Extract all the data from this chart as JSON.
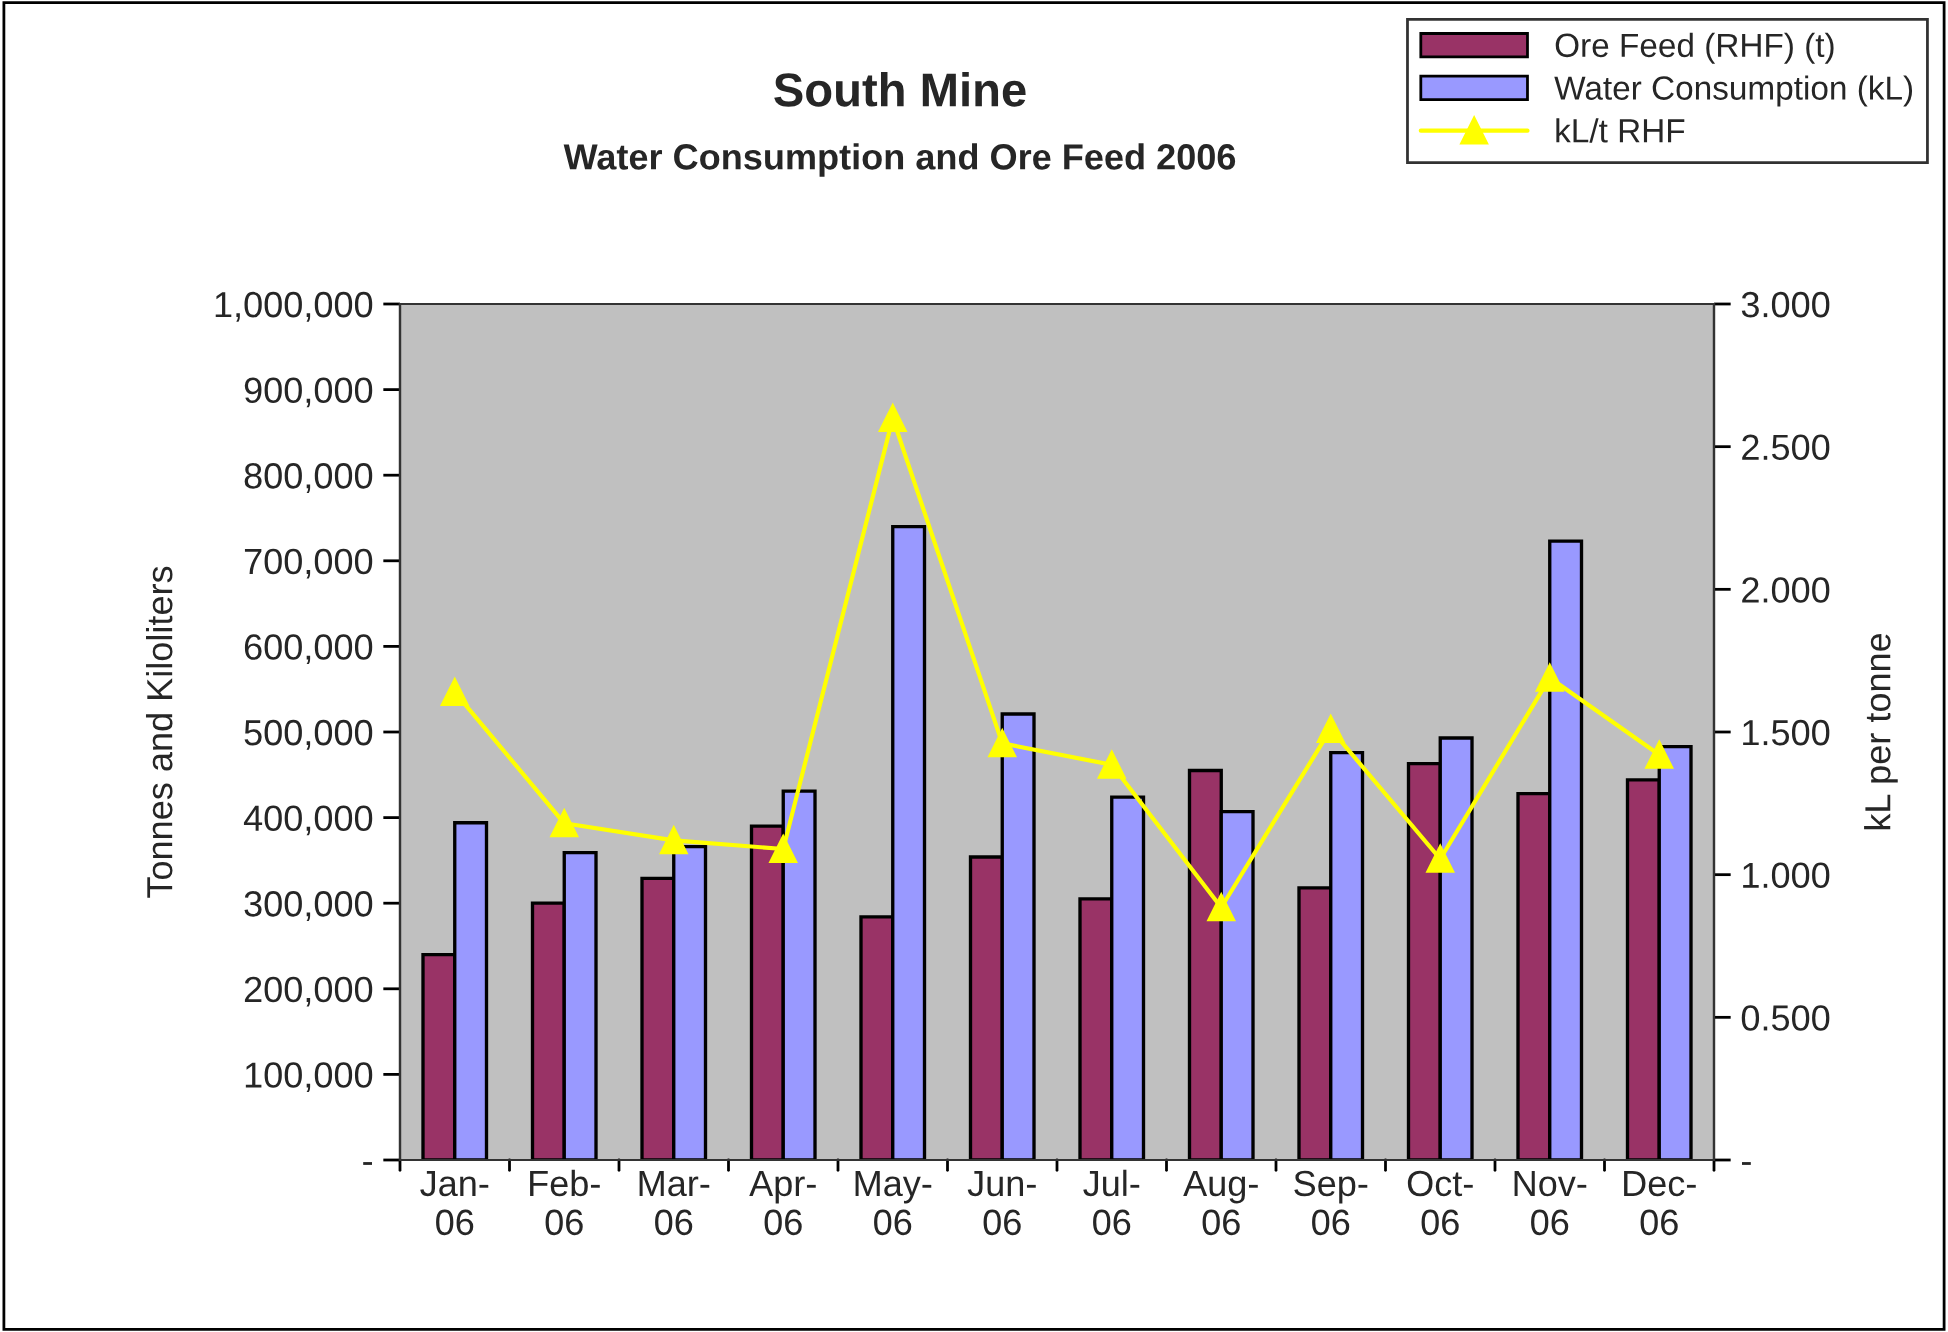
{
  "chart_data": {
    "type": "bar",
    "title": "South Mine",
    "subtitle": "Water Consumption and Ore Feed 2006",
    "ylabel": "Tonnes and Kiloliters",
    "y2label": "kL per tonne",
    "categories": [
      "Jan-\n06",
      "Feb-\n06",
      "Mar-\n06",
      "Apr-\n06",
      "May-\n06",
      "Jun-\n06",
      "Jul-\n06",
      "Aug-\n06",
      "Sep-\n06",
      "Oct-\n06",
      "Nov-\n06",
      "Dec-\n06"
    ],
    "series": [
      {
        "name": "Ore Feed (RHF) (t)",
        "color": "#993366",
        "values": [
          240000,
          300000,
          329000,
          390000,
          284000,
          354000,
          305000,
          455000,
          318000,
          463000,
          428000,
          444000
        ]
      },
      {
        "name": "Water Consumption (kL)",
        "color": "#9999ff",
        "values": [
          394000,
          359000,
          366000,
          431000,
          740000,
          521000,
          424000,
          407000,
          476000,
          493000,
          723000,
          483000
        ]
      },
      {
        "name": "kL/t RHF",
        "type": "line",
        "axis": "y2",
        "color": "#ffff00",
        "marker": "triangle",
        "values": [
          1.64,
          1.18,
          1.12,
          1.09,
          2.6,
          1.46,
          1.385,
          0.885,
          1.51,
          1.055,
          1.69,
          1.42
        ]
      }
    ],
    "ylim": [
      0,
      1000000
    ],
    "yticks": [
      {
        "value": 0,
        "label": "-"
      },
      {
        "value": 100000,
        "label": "100,000"
      },
      {
        "value": 200000,
        "label": "200,000"
      },
      {
        "value": 300000,
        "label": "300,000"
      },
      {
        "value": 400000,
        "label": "400,000"
      },
      {
        "value": 500000,
        "label": "500,000"
      },
      {
        "value": 600000,
        "label": "600,000"
      },
      {
        "value": 700000,
        "label": "700,000"
      },
      {
        "value": 800000,
        "label": "800,000"
      },
      {
        "value": 900000,
        "label": "900,000"
      },
      {
        "value": 1000000,
        "label": "1,000,000"
      }
    ],
    "y2lim": [
      0,
      3
    ],
    "y2ticks": [
      {
        "value": 0,
        "label": "-"
      },
      {
        "value": 0.5,
        "label": "0.500"
      },
      {
        "value": 1,
        "label": "1.000"
      },
      {
        "value": 1.5,
        "label": "1.500"
      },
      {
        "value": 2,
        "label": "2.000"
      },
      {
        "value": 2.5,
        "label": "2.500"
      },
      {
        "value": 3,
        "label": "3.000"
      }
    ],
    "grid": false,
    "legend": "top right"
  }
}
